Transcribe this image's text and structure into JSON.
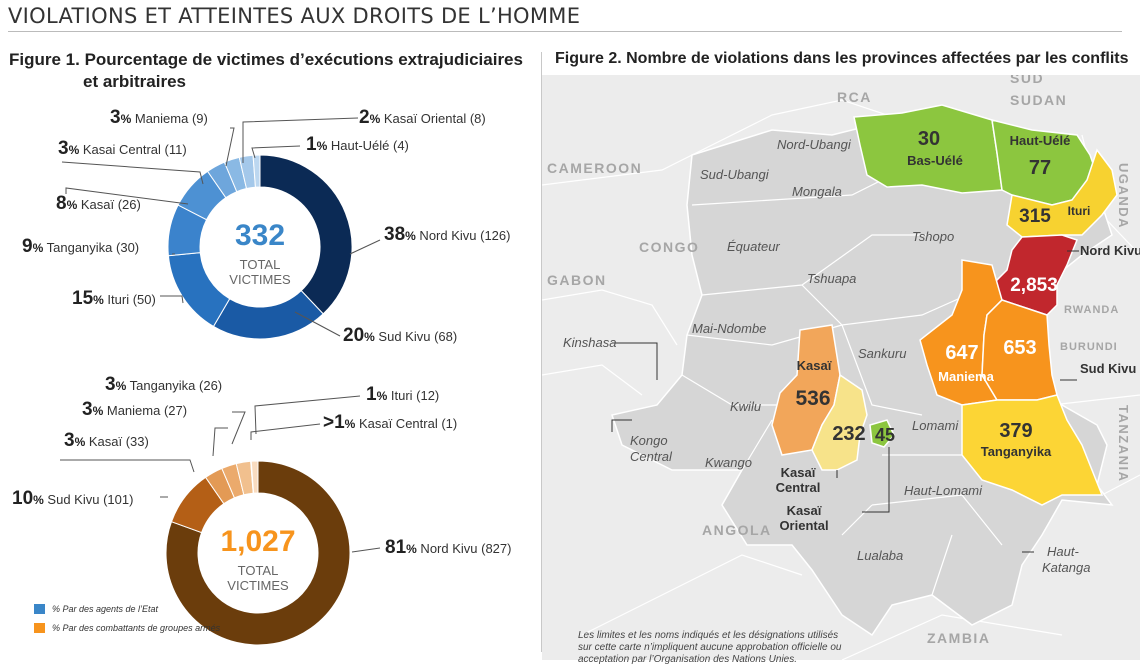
{
  "header": "VIOLATIONS ET ATTEINTES AUX DROITS DE L’HOMME",
  "figure1": {
    "title_line1": "Figure 1. Pourcentage de victimes d’exécutions extrajudiciaires",
    "title_line2": "et arbitraires"
  },
  "figure2": {
    "title": "Figure 2. Nombre de violations dans les provinces affectées par les conflits"
  },
  "chart_data": [
    {
      "type": "pie",
      "title": "Figure 1. Pourcentage de victimes d’exécutions extrajudiciaires et arbitraires",
      "series_name": "% Par des agents de l’Etat",
      "center_value": "332",
      "center_label_1": "TOTAL",
      "center_label_2": "VICTIMES",
      "slices": [
        {
          "pct": "38",
          "label": "Nord Kivu (126)",
          "value": 126,
          "color": "#0b2a55"
        },
        {
          "pct": "20",
          "label": "Sud Kivu (68)",
          "value": 68,
          "color": "#1a5aa5"
        },
        {
          "pct": "15",
          "label": "Ituri (50)",
          "value": 50,
          "color": "#2872bf"
        },
        {
          "pct": "9",
          "label": "Tanganyika (30)",
          "value": 30,
          "color": "#3b83cc"
        },
        {
          "pct": "8",
          "label": "Kasaï (26)",
          "value": 26,
          "color": "#4d91d3"
        },
        {
          "pct": "3",
          "label": "Kasai Central (11)",
          "value": 11,
          "color": "#6ea6dc"
        },
        {
          "pct": "3",
          "label": "Maniema (9)",
          "value": 9,
          "color": "#8ab9e4"
        },
        {
          "pct": "2",
          "label": "Kasaï Oriental (8)",
          "value": 8,
          "color": "#a4c8ea"
        },
        {
          "pct": "1",
          "label": "Haut-Uélé (4)",
          "value": 4,
          "color": "#bcd7f0"
        }
      ]
    },
    {
      "type": "pie",
      "series_name": "% Par des combattants de groupes armés",
      "center_value": "1,027",
      "center_label_1": "TOTAL",
      "center_label_2": "VICTIMES",
      "slices": [
        {
          "pct": "81",
          "label": "Nord Kivu (827)",
          "value": 827,
          "color": "#6b3d0c"
        },
        {
          "pct": "10",
          "label": "Sud Kivu (101)",
          "value": 101,
          "color": "#b45f16"
        },
        {
          "pct": "3",
          "label": "Kasaï (33)",
          "value": 33,
          "color": "#e39a55"
        },
        {
          "pct": "3",
          "label": "Maniema (27)",
          "value": 27,
          "color": "#ebaa6c"
        },
        {
          "pct": "3",
          "label": "Tanganyika (26)",
          "value": 26,
          "color": "#f1c08e"
        },
        {
          "pct": ">1",
          "label": "Kasaï Central (1)",
          "value": 1,
          "color": "#f6d2ae"
        },
        {
          "pct": "1",
          "label": "Ituri (12)",
          "value": 12,
          "color": "#f9dcc0"
        }
      ]
    },
    {
      "type": "map",
      "title": "Figure 2. Nombre de violations dans les provinces affectées par les conflits",
      "provinces": [
        {
          "name": "Bas-Uélé",
          "value": "30",
          "color": "#8cc63f"
        },
        {
          "name": "Haut-Uélé",
          "value": "77",
          "color": "#8cc63f"
        },
        {
          "name": "Ituri",
          "value": "315",
          "color": "#f7d230"
        },
        {
          "name": "Nord Kivu",
          "value": "2,853",
          "color": "#c1272d"
        },
        {
          "name": "Maniema",
          "value": "647",
          "color": "#f7941d"
        },
        {
          "name": "Sud Kivu",
          "value": "653",
          "color": "#f7941d"
        },
        {
          "name": "Tanganyika",
          "value": "379",
          "color": "#fcd535"
        },
        {
          "name": "Kasaï",
          "value": "536",
          "color": "#f2a65a"
        },
        {
          "name": "Kasaï Central",
          "value": "232",
          "color": "#f7e38a"
        },
        {
          "name": "Kasaï Oriental",
          "value": "45",
          "color": "#8cc63f"
        }
      ]
    }
  ],
  "legend": {
    "blue": "% Par des agents de l’Etat",
    "orange": "% Par des combattants de groupes armés"
  },
  "map": {
    "other_provinces": [
      "Nord-Ubangi",
      "Sud-Ubangi",
      "Mongala",
      "Équateur",
      "Tshopo",
      "Tshuapa",
      "Mai-Ndombe",
      "Sankuru",
      "Kwilu",
      "Lomami",
      "Kwango",
      "Haut-Lomami",
      "Lualaba"
    ],
    "callout_provinces": [
      {
        "line1": "Kongo",
        "line2": "Central"
      },
      {
        "line1": "Haut-",
        "line2": "Katanga"
      }
    ],
    "kinshasa": "Kinshasa",
    "countries": {
      "rca": "RCA",
      "sud1": "SUD",
      "sud2": "SUDAN",
      "cameroon": "CAMEROON",
      "congo": "CONGO",
      "gabon": "GABON",
      "uganda": "UGANDA",
      "rwanda": "RWANDA",
      "burundi": "BURUNDI",
      "tanzania": "TANZANIA",
      "angola": "ANGOLA",
      "zambia": "ZAMBIA"
    }
  },
  "disclaimer": "Les limites et les noms indiqués et les désignations utilisés sur cette carte n’impliquent aucune approbation officielle ou acceptation par l’Organisation des Nations Unies."
}
